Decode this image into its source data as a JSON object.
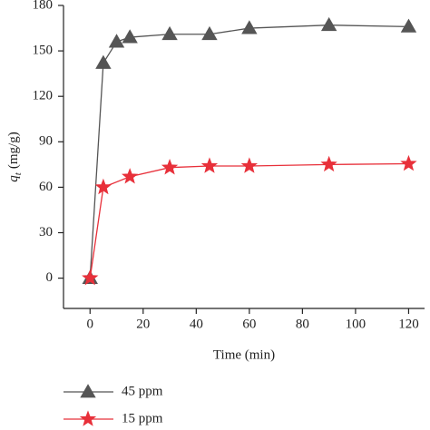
{
  "chart_data": {
    "type": "line",
    "x_label": "Time (min)",
    "y_label": {
      "symbol": "q",
      "subscript": "t",
      "unit": "(mg/g)"
    },
    "xlim": [
      -10,
      126
    ],
    "xticks": [
      0,
      20,
      40,
      60,
      80,
      100,
      120
    ],
    "ylim": [
      -20,
      180
    ],
    "yticks": [
      0,
      30,
      60,
      90,
      120,
      150,
      180
    ],
    "legend": "bottom",
    "series": [
      {
        "name": "45 ppm",
        "color": "#555555",
        "marker": "triangle",
        "x": [
          0,
          5,
          10,
          15,
          30,
          45,
          60,
          90,
          120
        ],
        "values": [
          0,
          142,
          156,
          159,
          161,
          161,
          165,
          167,
          166
        ]
      },
      {
        "name": "15 ppm",
        "color": "#e8303a",
        "marker": "star",
        "x": [
          0,
          5,
          15,
          30,
          45,
          60,
          90,
          120
        ],
        "values": [
          0,
          60,
          67,
          73,
          74,
          74,
          75,
          75.5
        ]
      }
    ]
  }
}
